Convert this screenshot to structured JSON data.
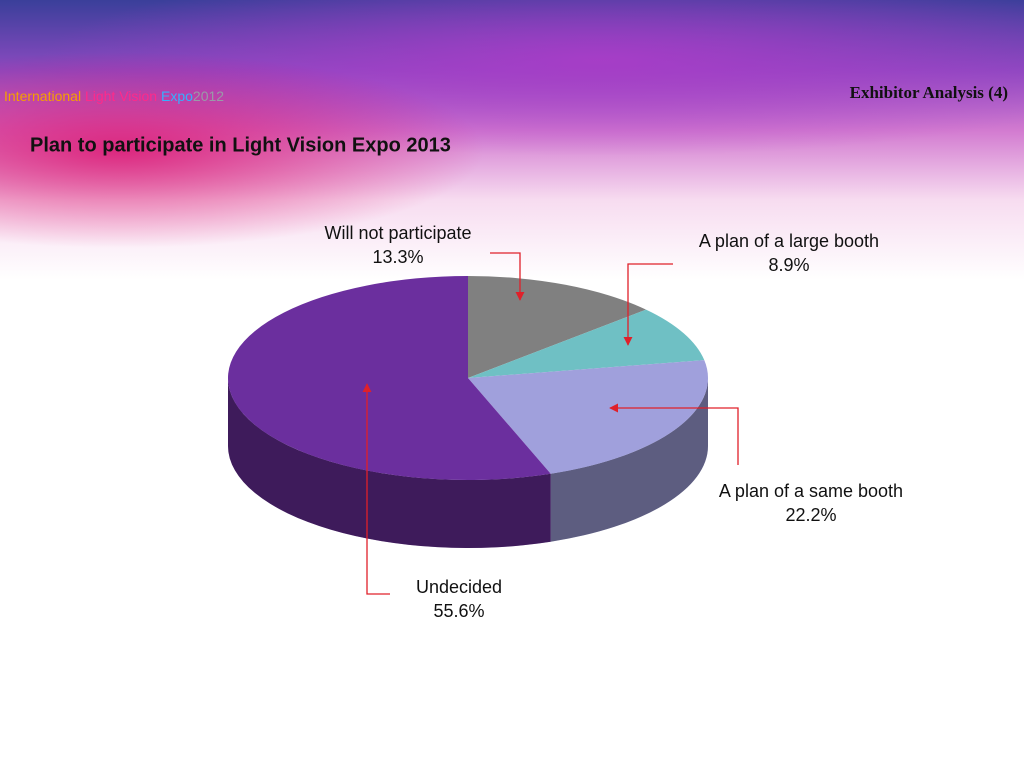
{
  "slide": {
    "logo": [
      "International",
      "Light Vision",
      "Expo",
      "2012"
    ],
    "heading": "Exhibitor Analysis (4)"
  },
  "chart_data": {
    "type": "pie",
    "title": "Plan to participate in Light Vision Expo 2013",
    "categories": [
      "Will not participate",
      "A plan of a large booth",
      "A plan of a same booth",
      "Undecided"
    ],
    "values": [
      13.3,
      8.9,
      22.2,
      55.6
    ],
    "value_labels": [
      "13.3%",
      "8.9%",
      "22.2%",
      "55.6%"
    ],
    "colors": [
      "#808080",
      "#6fc0c4",
      "#a0a0dc",
      "#6b2f9e"
    ]
  }
}
